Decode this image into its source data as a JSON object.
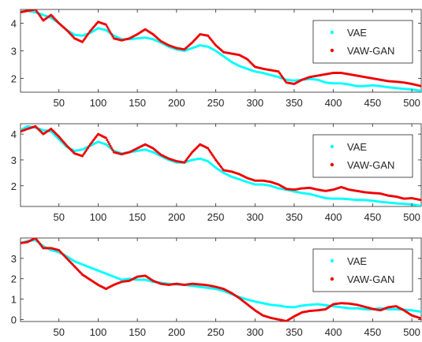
{
  "chart_data": [
    {
      "type": "scatter",
      "xlim": [
        1,
        512
      ],
      "ylim": [
        1.5,
        4.5
      ],
      "xticks": [
        50,
        100,
        150,
        200,
        250,
        300,
        350,
        400,
        450,
        500
      ],
      "yticks": [
        2,
        3,
        4
      ],
      "grid": false,
      "legend_position": "top-right",
      "series": [
        {
          "name": "VAE",
          "color": "#00ffff",
          "x": [
            1,
            10,
            20,
            30,
            40,
            50,
            60,
            70,
            80,
            90,
            100,
            110,
            120,
            130,
            140,
            150,
            160,
            170,
            180,
            190,
            200,
            210,
            220,
            230,
            240,
            250,
            260,
            270,
            280,
            290,
            300,
            310,
            320,
            330,
            340,
            350,
            360,
            370,
            380,
            390,
            400,
            410,
            420,
            430,
            440,
            450,
            460,
            470,
            480,
            490,
            500,
            512
          ],
          "y": [
            4.42,
            4.45,
            4.4,
            4.3,
            4.2,
            4.0,
            3.75,
            3.58,
            3.55,
            3.65,
            3.82,
            3.75,
            3.55,
            3.42,
            3.42,
            3.45,
            3.48,
            3.42,
            3.3,
            3.15,
            3.05,
            3.0,
            3.1,
            3.2,
            3.15,
            3.0,
            2.8,
            2.6,
            2.45,
            2.35,
            2.25,
            2.2,
            2.12,
            2.05,
            1.95,
            1.92,
            1.95,
            1.98,
            1.95,
            1.85,
            1.82,
            1.82,
            1.78,
            1.72,
            1.72,
            1.75,
            1.72,
            1.68,
            1.65,
            1.62,
            1.6,
            1.55
          ]
        },
        {
          "name": "VAW-GAN",
          "color": "#ee0000",
          "x": [
            1,
            10,
            20,
            30,
            40,
            50,
            60,
            70,
            80,
            90,
            100,
            110,
            120,
            130,
            140,
            150,
            160,
            170,
            180,
            190,
            200,
            210,
            220,
            230,
            240,
            250,
            260,
            270,
            280,
            290,
            300,
            310,
            320,
            330,
            340,
            350,
            360,
            370,
            380,
            390,
            400,
            410,
            420,
            430,
            440,
            450,
            460,
            470,
            480,
            490,
            500,
            512
          ],
          "y": [
            4.4,
            4.45,
            4.5,
            4.1,
            4.3,
            4.0,
            3.75,
            3.45,
            3.32,
            3.72,
            4.05,
            3.95,
            3.45,
            3.38,
            3.45,
            3.6,
            3.78,
            3.6,
            3.35,
            3.2,
            3.1,
            3.05,
            3.3,
            3.6,
            3.55,
            3.2,
            2.95,
            2.9,
            2.85,
            2.7,
            2.42,
            2.35,
            2.3,
            2.25,
            1.85,
            1.8,
            1.95,
            2.05,
            2.1,
            2.15,
            2.2,
            2.2,
            2.15,
            2.1,
            2.05,
            2.0,
            1.95,
            1.9,
            1.88,
            1.85,
            1.8,
            1.72
          ]
        }
      ]
    },
    {
      "type": "scatter",
      "xlim": [
        1,
        512
      ],
      "ylim": [
        1.2,
        4.4
      ],
      "xticks": [
        50,
        100,
        150,
        200,
        250,
        300,
        350,
        400,
        450,
        500
      ],
      "yticks": [
        2,
        3,
        4
      ],
      "grid": false,
      "legend_position": "top-right",
      "series": [
        {
          "name": "VAE",
          "color": "#00ffff",
          "x": [
            1,
            10,
            20,
            30,
            40,
            50,
            60,
            70,
            80,
            90,
            100,
            110,
            120,
            130,
            140,
            150,
            160,
            170,
            180,
            190,
            200,
            210,
            220,
            230,
            240,
            250,
            260,
            270,
            280,
            290,
            300,
            310,
            320,
            330,
            340,
            350,
            360,
            370,
            380,
            390,
            400,
            410,
            420,
            430,
            440,
            450,
            460,
            470,
            480,
            490,
            500,
            512
          ],
          "y": [
            4.15,
            4.3,
            4.25,
            4.15,
            4.1,
            3.8,
            3.5,
            3.35,
            3.4,
            3.55,
            3.7,
            3.6,
            3.35,
            3.25,
            3.3,
            3.35,
            3.4,
            3.3,
            3.15,
            3.0,
            2.9,
            2.9,
            3.0,
            3.05,
            2.95,
            2.7,
            2.5,
            2.35,
            2.25,
            2.15,
            2.05,
            2.05,
            2.0,
            1.9,
            1.85,
            1.78,
            1.72,
            1.68,
            1.6,
            1.52,
            1.5,
            1.5,
            1.48,
            1.45,
            1.45,
            1.42,
            1.38,
            1.35,
            1.32,
            1.3,
            1.28,
            1.22
          ]
        },
        {
          "name": "VAW-GAN",
          "color": "#ee0000",
          "x": [
            1,
            10,
            20,
            30,
            40,
            50,
            60,
            70,
            80,
            90,
            100,
            110,
            120,
            130,
            140,
            150,
            160,
            170,
            180,
            190,
            200,
            210,
            220,
            230,
            240,
            250,
            260,
            270,
            280,
            290,
            300,
            310,
            320,
            330,
            340,
            350,
            360,
            370,
            380,
            390,
            400,
            410,
            420,
            430,
            440,
            450,
            460,
            470,
            480,
            490,
            500,
            512
          ],
          "y": [
            4.1,
            4.2,
            4.3,
            4.0,
            4.2,
            3.9,
            3.55,
            3.25,
            3.15,
            3.6,
            4.0,
            3.85,
            3.3,
            3.22,
            3.3,
            3.45,
            3.6,
            3.45,
            3.2,
            3.05,
            2.95,
            2.9,
            3.3,
            3.6,
            3.45,
            3.0,
            2.6,
            2.55,
            2.45,
            2.3,
            2.2,
            2.2,
            2.15,
            2.05,
            1.88,
            1.85,
            1.9,
            1.92,
            1.85,
            1.8,
            1.85,
            1.95,
            1.85,
            1.8,
            1.75,
            1.72,
            1.7,
            1.62,
            1.58,
            1.5,
            1.52,
            1.45
          ]
        }
      ]
    },
    {
      "type": "scatter",
      "xlim": [
        1,
        512
      ],
      "ylim": [
        -0.1,
        4.0
      ],
      "xticks": [
        50,
        100,
        150,
        200,
        250,
        300,
        350,
        400,
        450,
        500
      ],
      "yticks": [
        0,
        1,
        2,
        3
      ],
      "grid": false,
      "legend_position": "top-right",
      "series": [
        {
          "name": "VAE",
          "color": "#00ffff",
          "x": [
            1,
            10,
            20,
            30,
            40,
            50,
            60,
            70,
            80,
            90,
            100,
            110,
            120,
            130,
            140,
            150,
            160,
            170,
            180,
            190,
            200,
            210,
            220,
            230,
            240,
            250,
            260,
            270,
            280,
            290,
            300,
            310,
            320,
            330,
            340,
            350,
            360,
            370,
            380,
            390,
            400,
            410,
            420,
            430,
            440,
            450,
            460,
            470,
            480,
            490,
            500,
            512
          ],
          "y": [
            3.75,
            3.85,
            3.9,
            3.6,
            3.4,
            3.3,
            3.1,
            2.85,
            2.7,
            2.55,
            2.4,
            2.25,
            2.1,
            1.95,
            2.0,
            1.95,
            1.95,
            1.85,
            1.8,
            1.75,
            1.72,
            1.7,
            1.65,
            1.6,
            1.55,
            1.5,
            1.4,
            1.25,
            1.1,
            0.98,
            0.88,
            0.8,
            0.72,
            0.68,
            0.62,
            0.6,
            0.68,
            0.72,
            0.75,
            0.7,
            0.65,
            0.6,
            0.55,
            0.55,
            0.5,
            0.5,
            0.55,
            0.5,
            0.5,
            0.48,
            0.45,
            0.38
          ]
        },
        {
          "name": "VAW-GAN",
          "color": "#ee0000",
          "x": [
            1,
            10,
            20,
            30,
            40,
            50,
            60,
            70,
            80,
            90,
            100,
            110,
            120,
            130,
            140,
            150,
            160,
            170,
            180,
            190,
            200,
            210,
            220,
            230,
            240,
            250,
            260,
            270,
            280,
            290,
            300,
            310,
            320,
            330,
            340,
            350,
            360,
            370,
            380,
            390,
            400,
            410,
            420,
            430,
            440,
            450,
            460,
            470,
            480,
            490,
            500,
            512
          ],
          "y": [
            3.75,
            3.8,
            4.0,
            3.5,
            3.5,
            3.4,
            3.0,
            2.6,
            2.2,
            1.95,
            1.7,
            1.5,
            1.7,
            1.85,
            1.9,
            2.1,
            2.15,
            1.9,
            1.75,
            1.7,
            1.75,
            1.7,
            1.75,
            1.72,
            1.68,
            1.6,
            1.5,
            1.3,
            1.05,
            0.75,
            0.45,
            0.2,
            0.08,
            0.0,
            -0.08,
            0.15,
            0.35,
            0.42,
            0.45,
            0.5,
            0.75,
            0.8,
            0.78,
            0.72,
            0.62,
            0.52,
            0.45,
            0.6,
            0.65,
            0.45,
            0.2,
            0.05
          ]
        }
      ]
    }
  ]
}
